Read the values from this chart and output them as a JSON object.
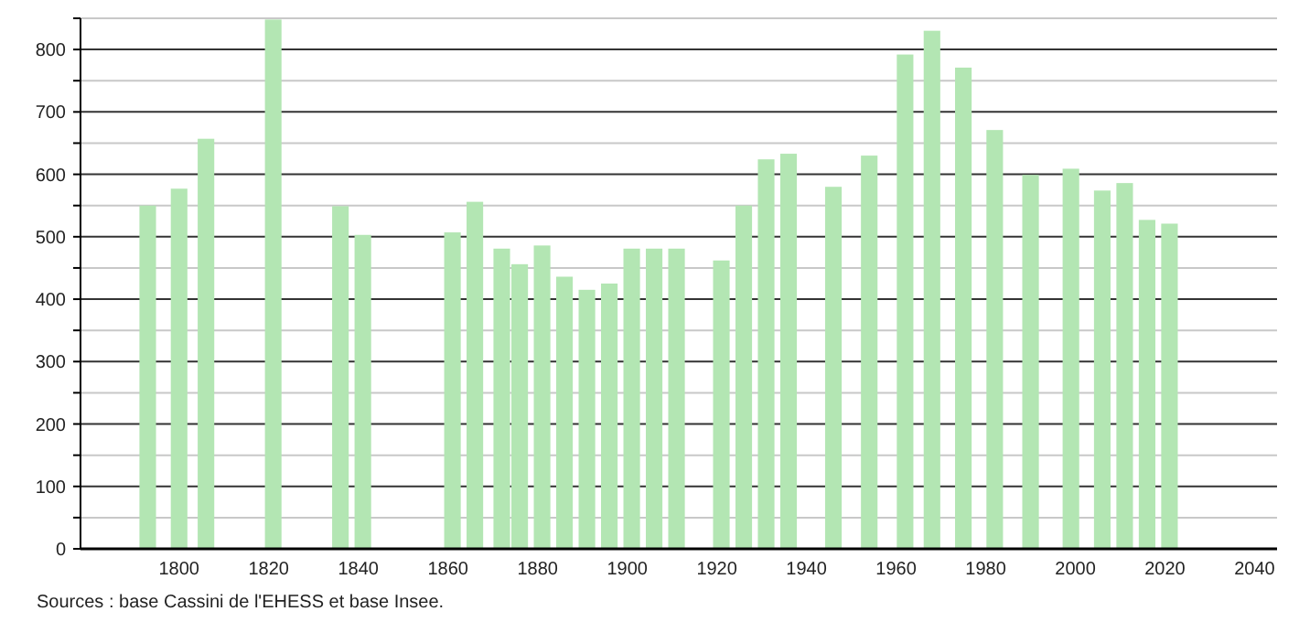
{
  "chart_data": {
    "type": "bar",
    "x": [
      1793,
      1800,
      1806,
      1821,
      1836,
      1841,
      1861,
      1866,
      1872,
      1876,
      1881,
      1886,
      1891,
      1896,
      1901,
      1906,
      1911,
      1921,
      1926,
      1931,
      1936,
      1946,
      1954,
      1962,
      1968,
      1975,
      1982,
      1990,
      1999,
      2006,
      2011,
      2016,
      2021
    ],
    "values": [
      550,
      577,
      657,
      848,
      549,
      503,
      507,
      556,
      481,
      456,
      486,
      436,
      415,
      425,
      481,
      481,
      481,
      462,
      550,
      624,
      633,
      580,
      630,
      792,
      830,
      771,
      671,
      599,
      609,
      574,
      586,
      527,
      521
    ],
    "color": "#b3e6b3",
    "xlim": [
      1778,
      2045
    ],
    "xticks": [
      1800,
      1820,
      1840,
      1860,
      1880,
      1900,
      1920,
      1940,
      1960,
      1980,
      2000,
      2020,
      2040
    ],
    "ylim": [
      0,
      850
    ],
    "yticks": [
      0,
      {
        "value": 50,
        "label": null
      },
      100,
      {
        "value": 150,
        "label": null
      },
      200,
      {
        "value": 250,
        "label": null
      },
      300,
      {
        "value": 350,
        "label": null
      },
      400,
      {
        "value": 450,
        "label": null
      },
      500,
      {
        "value": 550,
        "label": null
      },
      600,
      {
        "value": 650,
        "label": null
      },
      700,
      {
        "value": 750,
        "label": null
      },
      800,
      {
        "value": 850,
        "label": null
      }
    ],
    "grid": true,
    "annotations": [
      "Sources : base Cassini de l'EHESS et base Insee."
    ]
  }
}
